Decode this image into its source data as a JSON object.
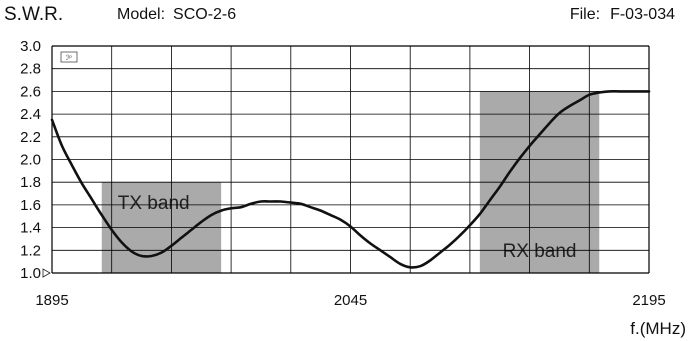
{
  "header": {
    "title": "S.W.R.",
    "model_label": "Model:",
    "model_value": "SCO-2-6",
    "file_label": "File:",
    "file_value": "F-03-034"
  },
  "colors": {
    "band_fill": "#aaaaaa",
    "grid": "#000000",
    "curve": "#111111"
  },
  "chart_data": {
    "type": "line",
    "title": "S.W.R.",
    "xlabel": "f.(MHz)",
    "ylabel": "",
    "xlim": [
      1895,
      2195
    ],
    "ylim": [
      1.0,
      3.0
    ],
    "x_ticks": [
      1895,
      2045,
      2195
    ],
    "y_ticks": [
      "1.0",
      "1.2",
      "1.4",
      "1.6",
      "1.8",
      "2.0",
      "2.2",
      "2.4",
      "2.6",
      "2.8",
      "3.0"
    ],
    "grid": true,
    "logo_text": "ℐᵖ",
    "bands": [
      {
        "label": "TX band",
        "x0": 1920,
        "x1": 1980,
        "y0": 1.0,
        "y1": 1.8
      },
      {
        "label": "RX band",
        "x0": 2110,
        "x1": 2170,
        "y0": 1.0,
        "y1": 2.6
      }
    ],
    "series": [
      {
        "points": [
          [
            1895,
            2.35
          ],
          [
            1900,
            2.12
          ],
          [
            1905,
            1.95
          ],
          [
            1910,
            1.79
          ],
          [
            1915,
            1.65
          ],
          [
            1920,
            1.51
          ],
          [
            1925,
            1.38
          ],
          [
            1930,
            1.27
          ],
          [
            1935,
            1.19
          ],
          [
            1940,
            1.15
          ],
          [
            1945,
            1.15
          ],
          [
            1950,
            1.18
          ],
          [
            1955,
            1.24
          ],
          [
            1960,
            1.31
          ],
          [
            1965,
            1.38
          ],
          [
            1970,
            1.45
          ],
          [
            1975,
            1.51
          ],
          [
            1980,
            1.55
          ],
          [
            1985,
            1.57
          ],
          [
            1990,
            1.58
          ],
          [
            1995,
            1.61
          ],
          [
            2000,
            1.63
          ],
          [
            2005,
            1.63
          ],
          [
            2010,
            1.63
          ],
          [
            2015,
            1.62
          ],
          [
            2020,
            1.61
          ],
          [
            2025,
            1.58
          ],
          [
            2030,
            1.55
          ],
          [
            2035,
            1.51
          ],
          [
            2040,
            1.47
          ],
          [
            2045,
            1.41
          ],
          [
            2050,
            1.33
          ],
          [
            2055,
            1.26
          ],
          [
            2060,
            1.2
          ],
          [
            2065,
            1.14
          ],
          [
            2070,
            1.08
          ],
          [
            2075,
            1.05
          ],
          [
            2080,
            1.06
          ],
          [
            2085,
            1.11
          ],
          [
            2090,
            1.18
          ],
          [
            2095,
            1.25
          ],
          [
            2100,
            1.33
          ],
          [
            2105,
            1.42
          ],
          [
            2110,
            1.52
          ],
          [
            2115,
            1.64
          ],
          [
            2120,
            1.76
          ],
          [
            2125,
            1.89
          ],
          [
            2130,
            2.01
          ],
          [
            2135,
            2.12
          ],
          [
            2140,
            2.22
          ],
          [
            2145,
            2.32
          ],
          [
            2150,
            2.41
          ],
          [
            2155,
            2.47
          ],
          [
            2160,
            2.52
          ],
          [
            2165,
            2.57
          ],
          [
            2170,
            2.59
          ],
          [
            2175,
            2.6
          ],
          [
            2180,
            2.6
          ],
          [
            2185,
            2.6
          ],
          [
            2190,
            2.6
          ],
          [
            2195,
            2.6
          ]
        ]
      }
    ]
  }
}
